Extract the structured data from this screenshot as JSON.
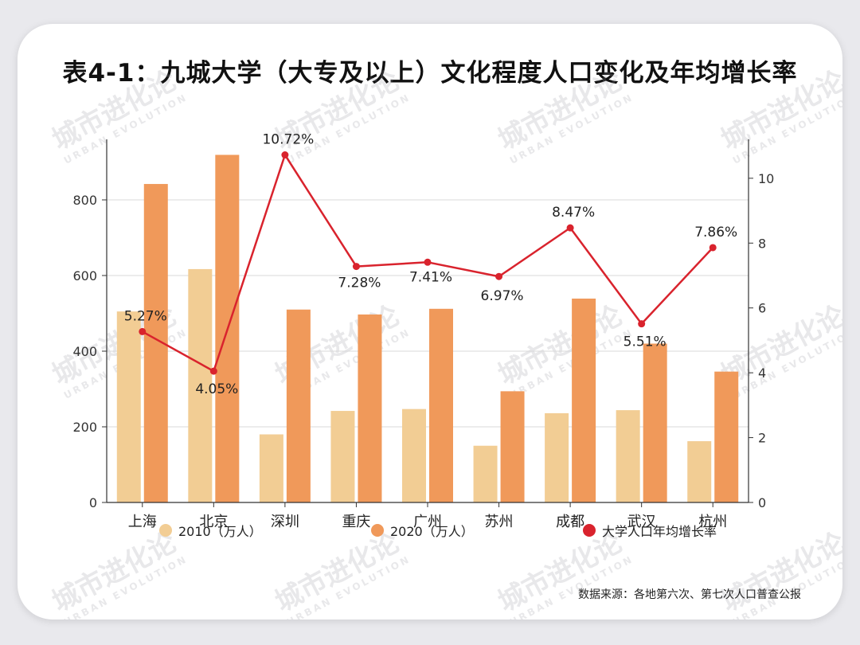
{
  "title": "表4-1：九城大学（大专及以上）文化程度人口变化及年均增长率",
  "watermark": {
    "cn": "城市进化论",
    "en": "URBAN EVOLUTION"
  },
  "source": "数据来源：各地第六次、第七次人口普查公报",
  "colors": {
    "s2010": "#f2cd94",
    "s2020": "#f0995a",
    "growth": "#d9232d"
  },
  "chart_data": {
    "type": "bar",
    "categories": [
      "上海",
      "北京",
      "深圳",
      "重庆",
      "广州",
      "苏州",
      "成都",
      "武汉",
      "杭州"
    ],
    "series": [
      {
        "name": "2010（万人）",
        "type": "bar",
        "axis": "left",
        "values": [
          505,
          617,
          180,
          242,
          247,
          150,
          236,
          244,
          162
        ]
      },
      {
        "name": "2020（万人）",
        "type": "bar",
        "axis": "left",
        "values": [
          842,
          919,
          510,
          497,
          512,
          294,
          539,
          420,
          346
        ]
      },
      {
        "name": "大学人口年均增长率",
        "type": "line",
        "axis": "right",
        "values": [
          5.27,
          4.05,
          10.72,
          7.28,
          7.41,
          6.97,
          8.47,
          5.51,
          7.86
        ],
        "labels": [
          "5.27%",
          "4.05%",
          "10.72%",
          "7.28%",
          "7.41%",
          "6.97%",
          "8.47%",
          "5.51%",
          "7.86%"
        ]
      }
    ],
    "y_left": {
      "min": 0,
      "max": 960,
      "ticks": [
        0,
        200,
        400,
        600,
        800
      ]
    },
    "y_right": {
      "min": 0,
      "max": 11.2,
      "ticks": [
        0,
        2,
        4,
        6,
        8,
        10
      ]
    },
    "grid": true,
    "legend": "bottom"
  }
}
